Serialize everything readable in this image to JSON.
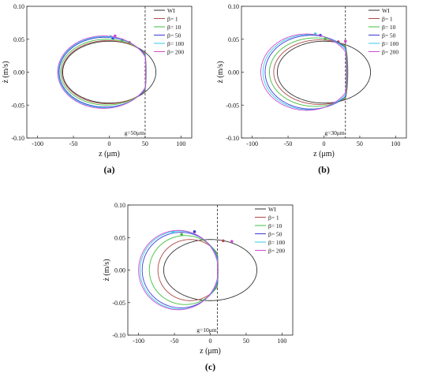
{
  "chart_data": [
    {
      "type": "line",
      "panel_label": "(a)",
      "gap_label": "g=50μm",
      "xlabel": "z (μm)",
      "ylabel": "ż (m/s)",
      "xlim": [
        -115,
        115
      ],
      "ylim": [
        -0.1,
        0.1
      ],
      "xticks": [
        "-100",
        "-50",
        "0",
        "50",
        "100"
      ],
      "yticks": [
        "0.10",
        "0.05",
        "0.00",
        "-0.05",
        "-0.10"
      ],
      "gap_z": 50,
      "legend_position": "top-right",
      "legend": [
        "WI",
        "β= 1",
        "β= 10",
        "β= 50",
        "β= 100",
        "β= 200"
      ],
      "series": [
        {
          "name": "WI",
          "color": "#333333",
          "left": -65,
          "right": 65,
          "amp": 0.047,
          "wall": null
        },
        {
          "name": "β= 1",
          "color": "#b04848",
          "left": -66,
          "right": 62,
          "amp": 0.048,
          "wall": 50,
          "dot": [
            28,
            0.045
          ]
        },
        {
          "name": "β= 10",
          "color": "#3fbf3f",
          "left": -68,
          "right": 60,
          "amp": 0.05,
          "wall": 50,
          "dot": [
            18,
            0.049
          ]
        },
        {
          "name": "β= 50",
          "color": "#3a3ad6",
          "left": -70,
          "right": 58,
          "amp": 0.053,
          "wall": 50,
          "dot": [
            5,
            0.052
          ]
        },
        {
          "name": "β= 100",
          "color": "#36c8e8",
          "left": -71,
          "right": 57,
          "amp": 0.054,
          "wall": 50,
          "dot": [
            2,
            0.054
          ]
        },
        {
          "name": "β= 200",
          "color": "#d04bd0",
          "left": -72,
          "right": 56,
          "amp": 0.055,
          "wall": 50,
          "dot": [
            8,
            0.055
          ]
        }
      ]
    },
    {
      "type": "line",
      "panel_label": "(b)",
      "gap_label": "g=30μm",
      "xlabel": "z (μm)",
      "ylabel": "ż (m/s)",
      "xlim": [
        -115,
        115
      ],
      "ylim": [
        -0.1,
        0.1
      ],
      "xticks": [
        "-100",
        "-50",
        "0",
        "50",
        "100"
      ],
      "yticks": [
        "0.10",
        "0.05",
        "0.00",
        "-0.05",
        "-0.10"
      ],
      "gap_z": 30,
      "legend_position": "top-right",
      "legend": [
        "WI",
        "β= 1",
        "β= 10",
        "β= 50",
        "β= 100",
        "β= 200"
      ],
      "series": [
        {
          "name": "WI",
          "color": "#333333",
          "left": -65,
          "right": 65,
          "amp": 0.047,
          "wall": null
        },
        {
          "name": "β= 1",
          "color": "#b04848",
          "left": -70,
          "right": 58,
          "amp": 0.049,
          "wall": 30,
          "dot": [
            20,
            0.046
          ]
        },
        {
          "name": "β= 10",
          "color": "#3fbf3f",
          "left": -76,
          "right": 52,
          "amp": 0.052,
          "wall": 30,
          "dot": [
            2,
            0.051
          ]
        },
        {
          "name": "β= 50",
          "color": "#3a3ad6",
          "left": -82,
          "right": 46,
          "amp": 0.056,
          "wall": 30,
          "dot": [
            -5,
            0.056
          ]
        },
        {
          "name": "β= 100",
          "color": "#36c8e8",
          "left": -85,
          "right": 43,
          "amp": 0.057,
          "wall": 30,
          "dot": [
            -12,
            0.058
          ]
        },
        {
          "name": "β= 200",
          "color": "#d04bd0",
          "left": -88,
          "right": 40,
          "amp": 0.058,
          "wall": 30,
          "dot": [
            30,
            0.047
          ]
        }
      ]
    },
    {
      "type": "line",
      "panel_label": "(c)",
      "gap_label": "g=10μm",
      "xlabel": "z (μm)",
      "ylabel": "ż (m/s)",
      "xlim": [
        -115,
        115
      ],
      "ylim": [
        -0.1,
        0.1
      ],
      "xticks": [
        "-100",
        "-50",
        "0",
        "50",
        "100"
      ],
      "yticks": [
        "0.10",
        "0.05",
        "0.00",
        "-0.05",
        "-0.10"
      ],
      "gap_z": 10,
      "legend_position": "top-right",
      "legend": [
        "WI",
        "β= 1",
        "β= 10",
        "β= 50",
        "β= 100",
        "β= 200"
      ],
      "series": [
        {
          "name": "WI",
          "color": "#333333",
          "left": -65,
          "right": 65,
          "amp": 0.047,
          "wall": null
        },
        {
          "name": "β= 1",
          "color": "#b04848",
          "left": -73,
          "right": 17,
          "amp": 0.047,
          "wall": 10,
          "dot": [
            18,
            0.045
          ]
        },
        {
          "name": "β= 10",
          "color": "#3fbf3f",
          "left": -85,
          "right": 15,
          "amp": 0.053,
          "wall": 10,
          "dot": [
            -40,
            0.055
          ]
        },
        {
          "name": "β= 50",
          "color": "#3a3ad6",
          "left": -95,
          "right": 13,
          "amp": 0.058,
          "wall": 10,
          "dot": [
            -22,
            0.059
          ]
        },
        {
          "name": "β= 100",
          "color": "#36c8e8",
          "left": -98,
          "right": 12,
          "amp": 0.06,
          "wall": 10,
          "dot": [
            -52,
            0.058
          ]
        },
        {
          "name": "β= 200",
          "color": "#d04bd0",
          "left": -100,
          "right": 11,
          "amp": 0.061,
          "wall": 10,
          "dot": [
            30,
            0.044
          ]
        }
      ]
    }
  ]
}
